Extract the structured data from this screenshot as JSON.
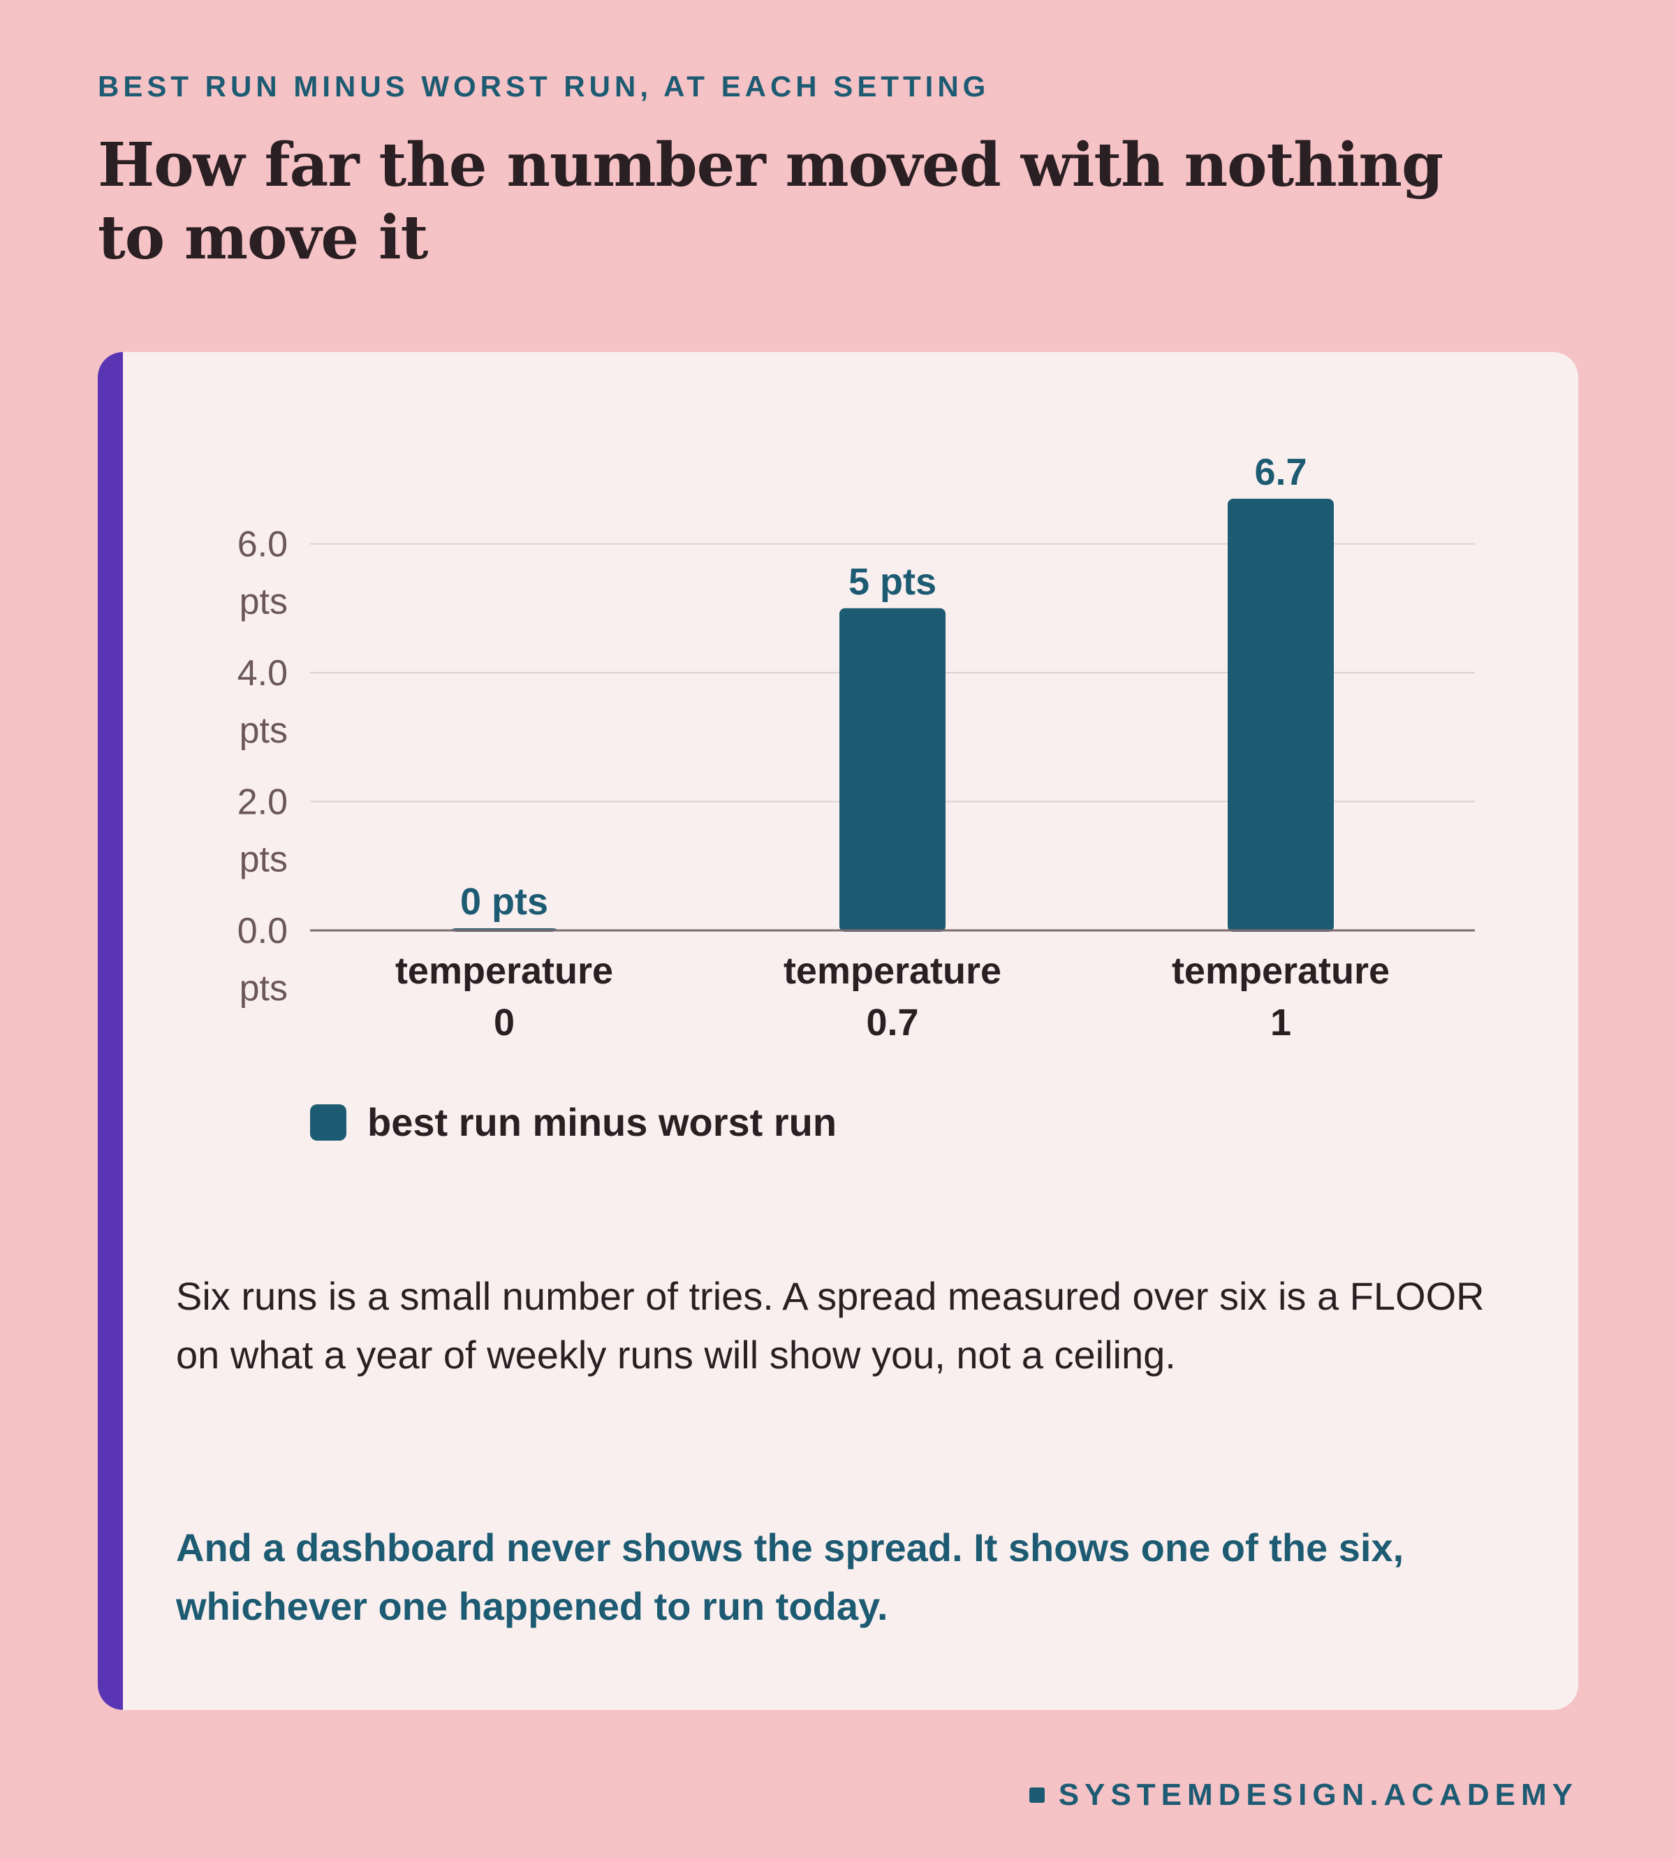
{
  "header": {
    "kicker": "BEST RUN MINUS WORST RUN, AT EACH SETTING",
    "headline": "How far the number moved with nothing to move it"
  },
  "chart_data": {
    "type": "bar",
    "categories": [
      [
        "temperature",
        "0"
      ],
      [
        "temperature",
        "0.7"
      ],
      [
        "temperature",
        "1"
      ]
    ],
    "values": [
      0,
      5,
      6.7
    ],
    "data_labels": [
      "0 pts",
      "5 pts",
      "6.7"
    ],
    "y_ticks": [
      {
        "value": 0,
        "label": [
          "0.0",
          "pts"
        ]
      },
      {
        "value": 2,
        "label": [
          "2.0",
          "pts"
        ]
      },
      {
        "value": 4,
        "label": [
          "4.0",
          "pts"
        ]
      },
      {
        "value": 6,
        "label": [
          "6.0",
          "pts"
        ]
      }
    ],
    "ylim": [
      0,
      6.7
    ],
    "grid": true,
    "legend": {
      "placement": "bottom-left",
      "entries": [
        {
          "label": "best run minus worst run",
          "color": "#1d5b73"
        }
      ]
    },
    "bar_color": "#1d5b73"
  },
  "body": {
    "note": "Six runs is a small number of tries. A spread measured over six is a FLOOR on what a year of weekly runs will show you, not a ceiling.",
    "conclusion": "And a dashboard never shows the spread. It shows one of the six, whichever one happened to run today."
  },
  "footer": {
    "brand": "SYSTEMDESIGN.ACADEMY"
  },
  "colors": {
    "background": "#f5c2c6",
    "card": "#f9efef",
    "accent": "#5a35b3",
    "primary": "#1d5b73",
    "text": "#2a1f22"
  }
}
